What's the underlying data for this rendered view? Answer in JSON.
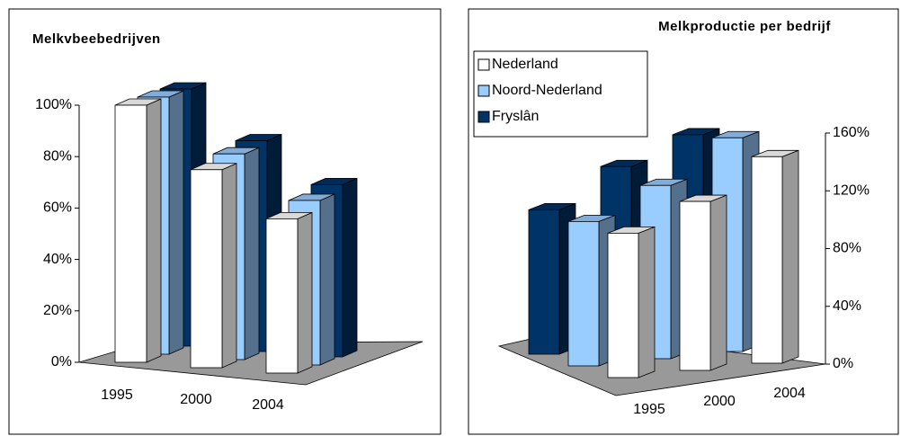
{
  "chart_data": [
    {
      "type": "bar3d",
      "title": "Melkvbeebedrijven",
      "categories": [
        "1995",
        "2000",
        "2004"
      ],
      "series": [
        {
          "color": "#ffffff",
          "values": [
            100,
            77,
            60
          ]
        },
        {
          "color": "#99ccff",
          "values": [
            100,
            80,
            64
          ]
        },
        {
          "color": "#003366",
          "values": [
            100,
            82,
            67
          ]
        }
      ],
      "ylim": [
        0,
        100
      ],
      "yticks": [
        {
          "value": 0,
          "label": "0%"
        },
        {
          "value": 20,
          "label": "20%"
        },
        {
          "value": 40,
          "label": "40%"
        },
        {
          "value": 60,
          "label": "60%"
        },
        {
          "value": 80,
          "label": "80%"
        },
        {
          "value": 100,
          "label": "100%"
        }
      ],
      "legend": false
    },
    {
      "type": "bar3d",
      "title": "Melkproductie per bedrijf",
      "categories": [
        "1995",
        "2000",
        "2004"
      ],
      "series": [
        {
          "name": "Nederland",
          "color": "#ffffff",
          "values": [
            100,
            117,
            143
          ]
        },
        {
          "name": "Noord-Nederland",
          "color": "#99ccff",
          "values": [
            100,
            120,
            148
          ]
        },
        {
          "name": "Fryslân",
          "color": "#003366",
          "values": [
            100,
            125,
            142
          ]
        }
      ],
      "ylim": [
        0,
        160
      ],
      "yticks": [
        {
          "value": 0,
          "label": "0%"
        },
        {
          "value": 40,
          "label": "40%"
        },
        {
          "value": 80,
          "label": "80%"
        },
        {
          "value": 120,
          "label": "120%"
        },
        {
          "value": 160,
          "label": "160%"
        }
      ],
      "legend": "upper left"
    }
  ]
}
